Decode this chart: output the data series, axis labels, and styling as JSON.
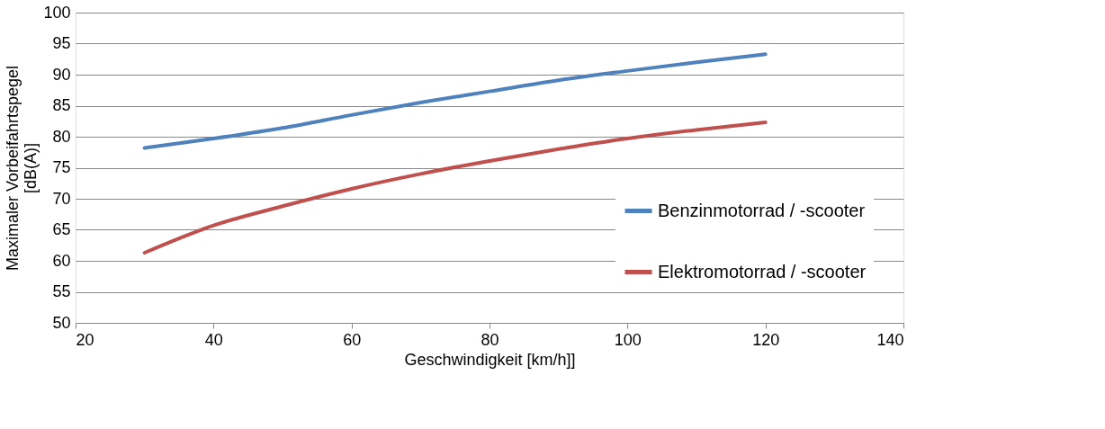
{
  "chart_data": {
    "type": "line",
    "xlabel": "Geschwindigkeit [km/h]]",
    "ylabel": "Maximaler Vorbeifahrtspegel [dB(A)]",
    "x": [
      30,
      40,
      50,
      60,
      70,
      80,
      90,
      100,
      110,
      120
    ],
    "series": [
      {
        "name": "Benzinmotorrad / -scooter",
        "color": "#4f81bd",
        "values": [
          78.2,
          79.7,
          81.4,
          83.5,
          85.5,
          87.3,
          89.1,
          90.6,
          92.0,
          93.3
        ]
      },
      {
        "name": "Elektromotorrad / -scooter",
        "color": "#c0504d",
        "values": [
          61.3,
          65.7,
          68.8,
          71.6,
          74.0,
          76.1,
          78.0,
          79.7,
          81.1,
          82.3
        ]
      }
    ],
    "xlim": [
      20,
      140
    ],
    "xticks": [
      20,
      40,
      60,
      80,
      100,
      120,
      140
    ],
    "ylim": [
      50,
      100
    ],
    "yticks": [
      50,
      55,
      60,
      65,
      70,
      75,
      80,
      85,
      90,
      95,
      100
    ],
    "grid": "y",
    "legend": "right",
    "marker": "none",
    "line_style": "solid"
  }
}
